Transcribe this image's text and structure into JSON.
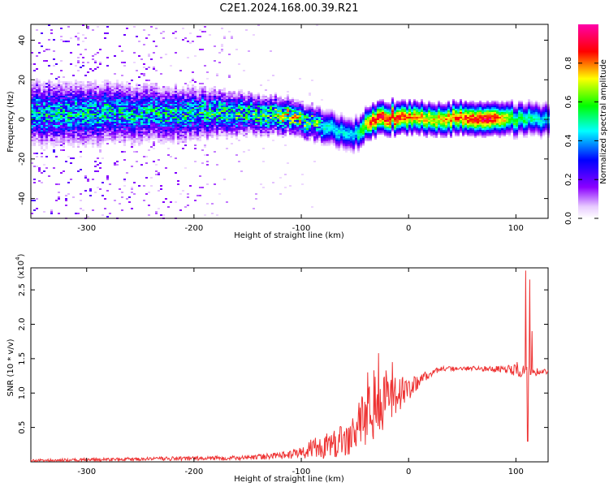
{
  "chart_data": [
    {
      "type": "heatmap",
      "title": "C2E1.2024.168.00.39.R21",
      "xlabel": "Height of straight line (km)",
      "ylabel": "Frequency (Hz)",
      "xlim": [
        -352,
        130
      ],
      "ylim": [
        -50,
        48
      ],
      "xticks": [
        "-300",
        "-200",
        "-100",
        "0",
        "100"
      ],
      "yticks": [
        "-40",
        "-20",
        "0",
        "20",
        "40"
      ],
      "colorbar": {
        "label": "Normalized spectral amplitude",
        "range": [
          0.0,
          1.0
        ],
        "ticks": [
          "0.0",
          "0.2",
          "0.4",
          "0.6",
          "0.8"
        ],
        "colormap": [
          "#ffffff",
          "#8b00ff",
          "#0000ff",
          "#00ffff",
          "#00ff00",
          "#ffff00",
          "#ff0000",
          "#ff00ff"
        ]
      },
      "ridge_profile": [
        {
          "x": -350,
          "freq": 3,
          "peak": 0.45,
          "scatter": 0.9
        },
        {
          "x": -300,
          "freq": 3,
          "peak": 0.45,
          "scatter": 0.85
        },
        {
          "x": -250,
          "freq": 3,
          "peak": 0.45,
          "scatter": 0.7
        },
        {
          "x": -200,
          "freq": 3,
          "peak": 0.48,
          "scatter": 0.55
        },
        {
          "x": -150,
          "freq": 3,
          "peak": 0.5,
          "scatter": 0.25
        },
        {
          "x": -110,
          "freq": 2,
          "peak": 0.65,
          "scatter": 0.1
        },
        {
          "x": -80,
          "freq": -3,
          "peak": 0.5,
          "scatter": 0.05
        },
        {
          "x": -50,
          "freq": -8,
          "peak": 0.45,
          "scatter": 0
        },
        {
          "x": -35,
          "freq": -1,
          "peak": 0.9,
          "scatter": 0
        },
        {
          "x": -15,
          "freq": 1,
          "peak": 0.92,
          "scatter": 0
        },
        {
          "x": 20,
          "freq": 0,
          "peak": 0.75,
          "scatter": 0
        },
        {
          "x": 75,
          "freq": 1,
          "peak": 0.97,
          "scatter": 0
        },
        {
          "x": 100,
          "freq": 0,
          "peak": 0.6,
          "scatter": 0
        },
        {
          "x": 130,
          "freq": 0,
          "peak": 0.45,
          "scatter": 0
        }
      ]
    },
    {
      "type": "line",
      "xlabel": "Height of straight line (km)",
      "ylabel": "SNR (10 * v/v)",
      "y_multiplier": "(x10",
      "y_multiplier_exp": "4",
      "y_multiplier_close": ")",
      "xlim": [
        -352,
        130
      ],
      "ylim": [
        0,
        2.82
      ],
      "xticks": [
        "-300",
        "-200",
        "-100",
        "0",
        "100"
      ],
      "yticks": [
        "0.5",
        "1.0",
        "1.5",
        "2.0",
        "2.5"
      ],
      "color": "#ee3333",
      "envelope": [
        {
          "x": -352,
          "y": 0.02,
          "noise": 0.02
        },
        {
          "x": -200,
          "y": 0.05,
          "noise": 0.03
        },
        {
          "x": -150,
          "y": 0.06,
          "noise": 0.03
        },
        {
          "x": -110,
          "y": 0.1,
          "noise": 0.06
        },
        {
          "x": -80,
          "y": 0.22,
          "noise": 0.2
        },
        {
          "x": -60,
          "y": 0.32,
          "noise": 0.25
        },
        {
          "x": -45,
          "y": 0.6,
          "noise": 0.4
        },
        {
          "x": -30,
          "y": 0.9,
          "noise": 0.55
        },
        {
          "x": -15,
          "y": 0.95,
          "noise": 0.35
        },
        {
          "x": 0,
          "y": 1.05,
          "noise": 0.15
        },
        {
          "x": 15,
          "y": 1.25,
          "noise": 0.08
        },
        {
          "x": 30,
          "y": 1.35,
          "noise": 0.04
        },
        {
          "x": 60,
          "y": 1.36,
          "noise": 0.03
        },
        {
          "x": 90,
          "y": 1.35,
          "noise": 0.05
        },
        {
          "x": 105,
          "y": 1.32,
          "noise": 0.1
        },
        {
          "x": 130,
          "y": 1.31,
          "noise": 0.03
        }
      ],
      "spikes": [
        {
          "x": -38,
          "y": 1.3
        },
        {
          "x": -28,
          "y": 1.58
        },
        {
          "x": -15,
          "y": 1.45
        },
        {
          "x": 101,
          "y": 1.45
        },
        {
          "x": 109,
          "y": 2.78
        },
        {
          "x": 111,
          "y": 0.3
        },
        {
          "x": 113,
          "y": 2.65
        },
        {
          "x": 115,
          "y": 1.9
        }
      ]
    }
  ]
}
